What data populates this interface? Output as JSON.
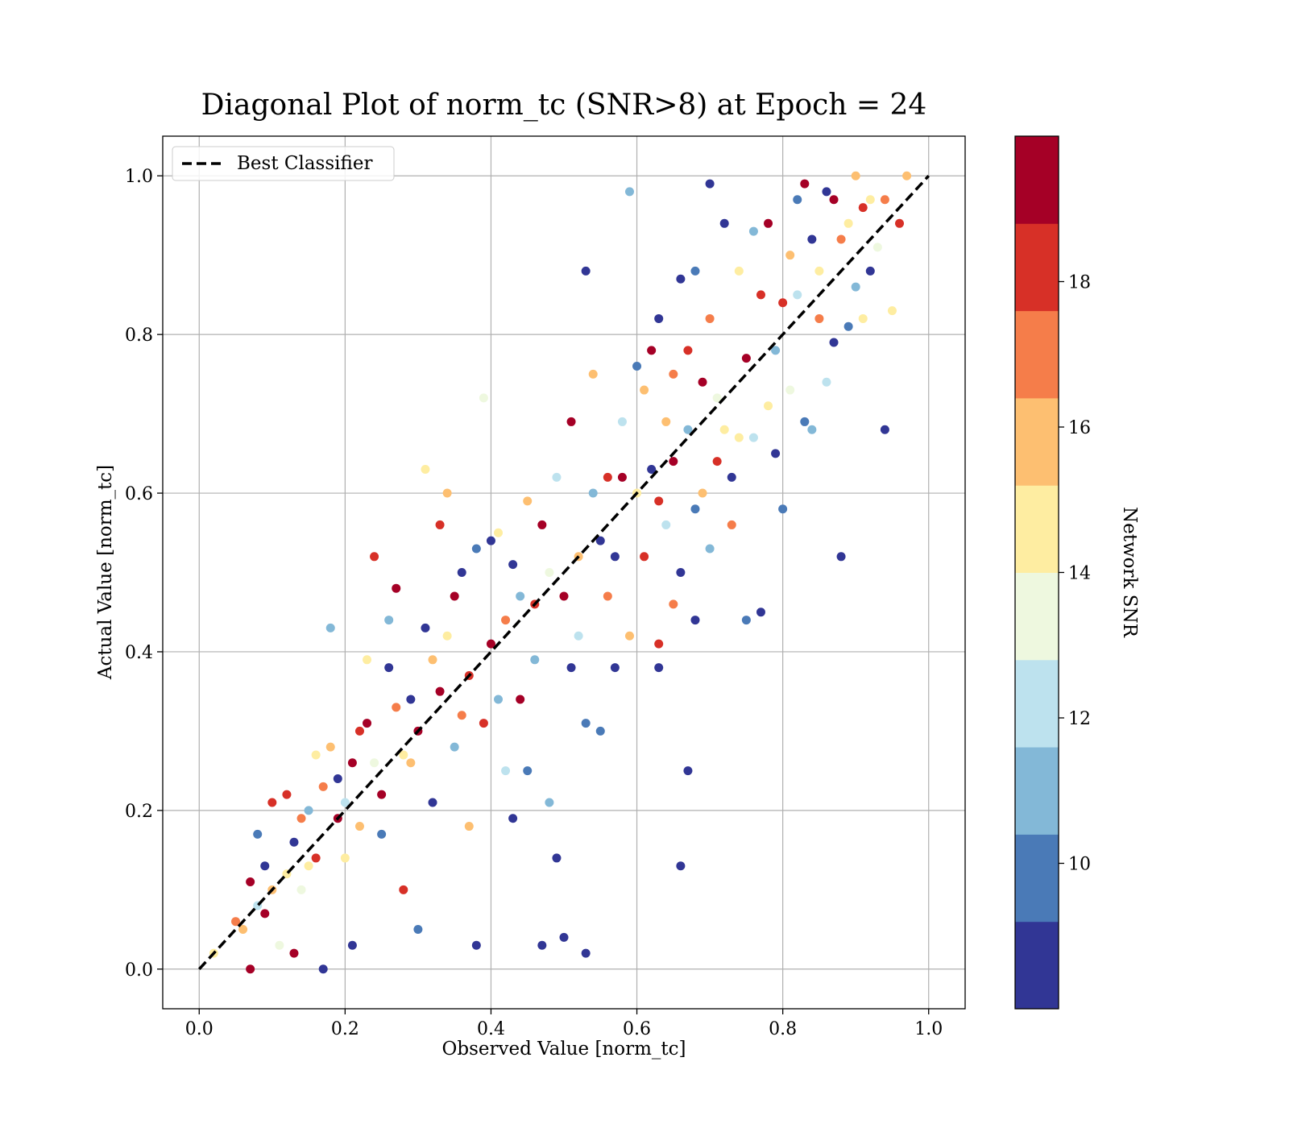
{
  "chart_data": {
    "type": "scatter",
    "title": "Diagonal Plot of norm_tc (SNR>8) at Epoch = 24",
    "xlabel": "Observed Value [norm_tc]",
    "ylabel": "Actual Value [norm_tc]",
    "xlim": [
      -0.05,
      1.05
    ],
    "ylim": [
      -0.05,
      1.05
    ],
    "xticks": [
      "0.0",
      "0.2",
      "0.4",
      "0.6",
      "0.8",
      "1.0"
    ],
    "yticks": [
      "0.0",
      "0.2",
      "0.4",
      "0.6",
      "0.8",
      "1.0"
    ],
    "grid": true,
    "legend": {
      "placement": "top-left",
      "entries": [
        "Best Classifier"
      ]
    },
    "reference_line": {
      "name": "Best Classifier",
      "style": "dashed",
      "color": "#000000",
      "x": [
        0,
        1
      ],
      "y": [
        0,
        1
      ]
    },
    "colorbar": {
      "label": "Network SNR",
      "range": [
        8,
        20
      ],
      "ticks": [
        "10",
        "12",
        "14",
        "16",
        "18"
      ],
      "tick_values": [
        10,
        12,
        14,
        16,
        18
      ],
      "colormap": "RdYlBu_r",
      "colors": [
        "#313695",
        "#4a7ab7",
        "#83b8d7",
        "#bde2ee",
        "#eef8df",
        "#feeda1",
        "#fdbf71",
        "#f57d4a",
        "#d73027",
        "#a50026"
      ]
    },
    "points": [
      [
        0.02,
        0.02,
        14
      ],
      [
        0.05,
        0.06,
        17
      ],
      [
        0.06,
        0.05,
        16
      ],
      [
        0.07,
        0.0,
        19
      ],
      [
        0.07,
        0.11,
        19
      ],
      [
        0.08,
        0.08,
        12
      ],
      [
        0.08,
        0.17,
        10
      ],
      [
        0.09,
        0.07,
        19
      ],
      [
        0.09,
        0.13,
        9
      ],
      [
        0.1,
        0.21,
        18
      ],
      [
        0.1,
        0.1,
        16
      ],
      [
        0.11,
        0.03,
        13
      ],
      [
        0.12,
        0.22,
        18
      ],
      [
        0.12,
        0.12,
        14
      ],
      [
        0.13,
        0.16,
        9
      ],
      [
        0.13,
        0.02,
        19
      ],
      [
        0.14,
        0.19,
        17
      ],
      [
        0.14,
        0.1,
        13
      ],
      [
        0.15,
        0.2,
        11
      ],
      [
        0.15,
        0.13,
        14
      ],
      [
        0.16,
        0.27,
        15
      ],
      [
        0.16,
        0.14,
        18
      ],
      [
        0.17,
        0.0,
        9
      ],
      [
        0.17,
        0.23,
        17
      ],
      [
        0.18,
        0.28,
        16
      ],
      [
        0.18,
        0.43,
        11
      ],
      [
        0.19,
        0.24,
        9
      ],
      [
        0.19,
        0.19,
        19
      ],
      [
        0.2,
        0.21,
        12
      ],
      [
        0.2,
        0.14,
        15
      ],
      [
        0.21,
        0.26,
        19
      ],
      [
        0.21,
        0.03,
        9
      ],
      [
        0.22,
        0.3,
        18
      ],
      [
        0.22,
        0.18,
        16
      ],
      [
        0.23,
        0.39,
        15
      ],
      [
        0.23,
        0.31,
        19
      ],
      [
        0.24,
        0.52,
        18
      ],
      [
        0.24,
        0.26,
        13
      ],
      [
        0.25,
        0.22,
        19
      ],
      [
        0.25,
        0.17,
        10
      ],
      [
        0.26,
        0.38,
        9
      ],
      [
        0.26,
        0.44,
        11
      ],
      [
        0.27,
        0.33,
        17
      ],
      [
        0.27,
        0.48,
        19
      ],
      [
        0.28,
        0.27,
        14
      ],
      [
        0.28,
        0.1,
        18
      ],
      [
        0.29,
        0.34,
        9
      ],
      [
        0.29,
        0.26,
        16
      ],
      [
        0.3,
        0.3,
        19
      ],
      [
        0.3,
        0.05,
        10
      ],
      [
        0.31,
        0.63,
        14
      ],
      [
        0.31,
        0.43,
        9
      ],
      [
        0.32,
        0.39,
        16
      ],
      [
        0.32,
        0.21,
        9
      ],
      [
        0.33,
        0.56,
        18
      ],
      [
        0.33,
        0.35,
        19
      ],
      [
        0.34,
        0.6,
        16
      ],
      [
        0.34,
        0.42,
        14
      ],
      [
        0.35,
        0.47,
        19
      ],
      [
        0.35,
        0.28,
        11
      ],
      [
        0.36,
        0.32,
        17
      ],
      [
        0.36,
        0.5,
        9
      ],
      [
        0.37,
        0.37,
        18
      ],
      [
        0.37,
        0.18,
        16
      ],
      [
        0.38,
        0.53,
        10
      ],
      [
        0.38,
        0.03,
        9
      ],
      [
        0.39,
        0.72,
        13
      ],
      [
        0.39,
        0.31,
        18
      ],
      [
        0.4,
        0.41,
        19
      ],
      [
        0.4,
        0.54,
        9
      ],
      [
        0.41,
        0.55,
        15
      ],
      [
        0.41,
        0.34,
        11
      ],
      [
        0.42,
        0.44,
        17
      ],
      [
        0.42,
        0.25,
        12
      ],
      [
        0.43,
        0.51,
        9
      ],
      [
        0.43,
        0.19,
        9
      ],
      [
        0.44,
        0.47,
        11
      ],
      [
        0.44,
        0.34,
        19
      ],
      [
        0.45,
        0.59,
        16
      ],
      [
        0.45,
        0.25,
        10
      ],
      [
        0.46,
        0.46,
        18
      ],
      [
        0.46,
        0.39,
        11
      ],
      [
        0.47,
        0.56,
        19
      ],
      [
        0.47,
        0.03,
        9
      ],
      [
        0.48,
        0.5,
        13
      ],
      [
        0.48,
        0.21,
        11
      ],
      [
        0.49,
        0.62,
        12
      ],
      [
        0.49,
        0.14,
        9
      ],
      [
        0.5,
        0.47,
        19
      ],
      [
        0.5,
        0.04,
        9
      ],
      [
        0.51,
        0.69,
        19
      ],
      [
        0.51,
        0.38,
        9
      ],
      [
        0.52,
        0.52,
        16
      ],
      [
        0.52,
        0.42,
        12
      ],
      [
        0.53,
        0.88,
        9
      ],
      [
        0.53,
        0.31,
        10
      ],
      [
        0.53,
        0.02,
        9
      ],
      [
        0.54,
        0.75,
        16
      ],
      [
        0.54,
        0.6,
        11
      ],
      [
        0.55,
        0.54,
        9
      ],
      [
        0.55,
        0.3,
        10
      ],
      [
        0.56,
        0.62,
        18
      ],
      [
        0.56,
        0.47,
        17
      ],
      [
        0.57,
        0.52,
        9
      ],
      [
        0.57,
        0.38,
        9
      ],
      [
        0.58,
        0.69,
        12
      ],
      [
        0.58,
        0.62,
        19
      ],
      [
        0.59,
        0.98,
        11
      ],
      [
        0.59,
        0.42,
        16
      ],
      [
        0.6,
        0.6,
        14
      ],
      [
        0.6,
        0.76,
        10
      ],
      [
        0.61,
        0.73,
        16
      ],
      [
        0.61,
        0.52,
        18
      ],
      [
        0.62,
        0.78,
        19
      ],
      [
        0.62,
        0.63,
        9
      ],
      [
        0.63,
        0.82,
        9
      ],
      [
        0.63,
        0.59,
        18
      ],
      [
        0.63,
        0.41,
        18
      ],
      [
        0.63,
        0.38,
        9
      ],
      [
        0.64,
        0.69,
        16
      ],
      [
        0.64,
        0.56,
        12
      ],
      [
        0.65,
        0.75,
        17
      ],
      [
        0.65,
        0.64,
        19
      ],
      [
        0.65,
        0.46,
        17
      ],
      [
        0.66,
        0.87,
        9
      ],
      [
        0.66,
        0.5,
        9
      ],
      [
        0.66,
        0.13,
        9
      ],
      [
        0.67,
        0.78,
        18
      ],
      [
        0.67,
        0.68,
        11
      ],
      [
        0.67,
        0.25,
        9
      ],
      [
        0.68,
        0.88,
        10
      ],
      [
        0.68,
        0.58,
        10
      ],
      [
        0.68,
        0.44,
        9
      ],
      [
        0.69,
        0.74,
        19
      ],
      [
        0.69,
        0.6,
        16
      ],
      [
        0.7,
        0.99,
        9
      ],
      [
        0.7,
        0.82,
        17
      ],
      [
        0.7,
        0.53,
        11
      ],
      [
        0.71,
        0.72,
        13
      ],
      [
        0.71,
        0.64,
        18
      ],
      [
        0.72,
        0.94,
        9
      ],
      [
        0.72,
        0.68,
        14
      ],
      [
        0.73,
        0.62,
        9
      ],
      [
        0.73,
        0.56,
        17
      ],
      [
        0.74,
        0.88,
        15
      ],
      [
        0.74,
        0.67,
        15
      ],
      [
        0.75,
        0.44,
        10
      ],
      [
        0.75,
        0.77,
        19
      ],
      [
        0.76,
        0.93,
        11
      ],
      [
        0.76,
        0.67,
        12
      ],
      [
        0.77,
        0.85,
        18
      ],
      [
        0.77,
        0.45,
        9
      ],
      [
        0.78,
        0.94,
        19
      ],
      [
        0.78,
        0.71,
        14
      ],
      [
        0.79,
        0.78,
        11
      ],
      [
        0.79,
        0.65,
        9
      ],
      [
        0.8,
        0.58,
        10
      ],
      [
        0.8,
        0.84,
        18
      ],
      [
        0.81,
        0.9,
        16
      ],
      [
        0.81,
        0.73,
        13
      ],
      [
        0.82,
        0.97,
        10
      ],
      [
        0.82,
        0.85,
        12
      ],
      [
        0.83,
        0.99,
        19
      ],
      [
        0.83,
        0.69,
        10
      ],
      [
        0.84,
        0.92,
        9
      ],
      [
        0.84,
        0.68,
        11
      ],
      [
        0.85,
        0.88,
        14
      ],
      [
        0.85,
        0.82,
        17
      ],
      [
        0.86,
        0.98,
        9
      ],
      [
        0.86,
        0.74,
        12
      ],
      [
        0.87,
        0.97,
        19
      ],
      [
        0.87,
        0.79,
        9
      ],
      [
        0.88,
        0.92,
        17
      ],
      [
        0.88,
        0.52,
        9
      ],
      [
        0.89,
        0.94,
        14
      ],
      [
        0.89,
        0.81,
        10
      ],
      [
        0.9,
        1.0,
        16
      ],
      [
        0.9,
        0.86,
        11
      ],
      [
        0.91,
        0.96,
        18
      ],
      [
        0.91,
        0.82,
        15
      ],
      [
        0.92,
        0.97,
        15
      ],
      [
        0.92,
        0.88,
        9
      ],
      [
        0.93,
        0.91,
        13
      ],
      [
        0.94,
        0.97,
        17
      ],
      [
        0.94,
        0.68,
        9
      ],
      [
        0.95,
        0.83,
        14
      ],
      [
        0.96,
        0.94,
        18
      ],
      [
        0.97,
        1.0,
        16
      ]
    ]
  }
}
